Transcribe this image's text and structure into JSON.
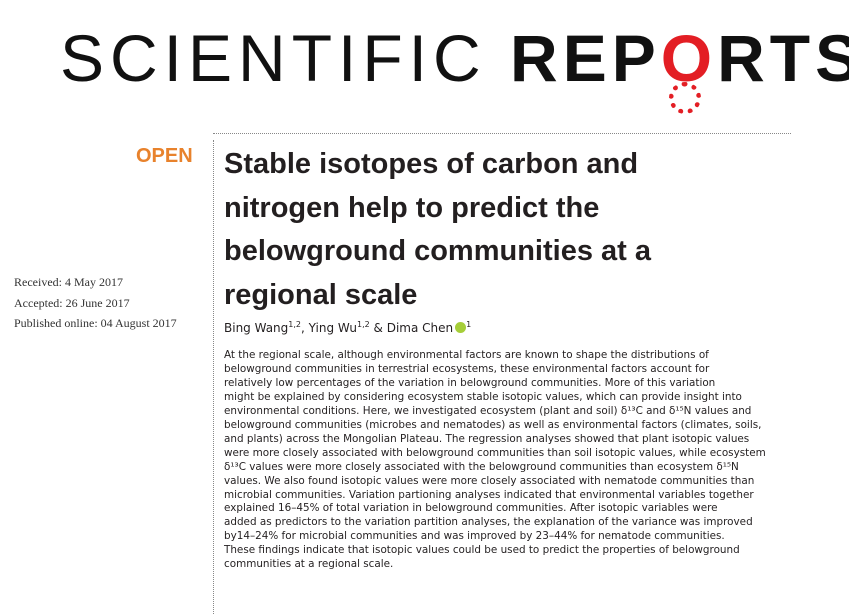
{
  "journal": {
    "light": "SCIENTIFIC",
    "bold_start": "REP",
    "gear_letter": "O",
    "bold_end": "RTS"
  },
  "access": "OPEN",
  "title": "Stable isotopes of carbon and nitrogen help to predict the belowground communities at a regional scale",
  "dates": [
    "Received: 4 May 2017",
    "Accepted: 26 June 2017",
    "Published online: 04 August 2017"
  ],
  "authors": {
    "names": [
      "Bing Wang",
      "Ying Wu",
      "Dima Chen"
    ],
    "affiliations": [
      "1,2",
      "1,2",
      "1"
    ],
    "separators": [
      ", ",
      " & "
    ]
  },
  "abstract": [
    "At the regional scale, although environmental factors are known to shape the distributions of",
    "belowground communities in terrestrial ecosystems, these environmental factors account for",
    "relatively low percentages of the variation in belowground communities. More of this variation",
    "might be explained by considering ecosystem stable isotopic values, which can provide insight into",
    "environmental conditions. Here, we investigated ecosystem (plant and soil) δ¹³C and δ¹⁵N values and",
    "belowground communities (microbes and nematodes) as well as environmental factors (climates, soils,",
    "and plants) across the Mongolian Plateau. The regression analyses showed that plant isotopic values",
    "were more closely associated with belowground communities than soil isotopic values, while ecosystem",
    "δ¹³C values were more closely associated with the belowground communities than ecosystem δ¹⁵N",
    "values. We also found isotopic values were more closely associated with nematode communities than",
    "microbial communities. Variation partioning analyses indicated that environmental variables together",
    "explained 16–45% of total variation in belowground communities. After isotopic variables were",
    "added as predictors to the variation partition analyses, the explanation of the variance was improved",
    "by14–24% for microbial communities and was improved by 23–44% for nematode communities.",
    "These findings indicate that isotopic values could be used to predict the properties of belowground",
    "communities at a regional scale."
  ]
}
